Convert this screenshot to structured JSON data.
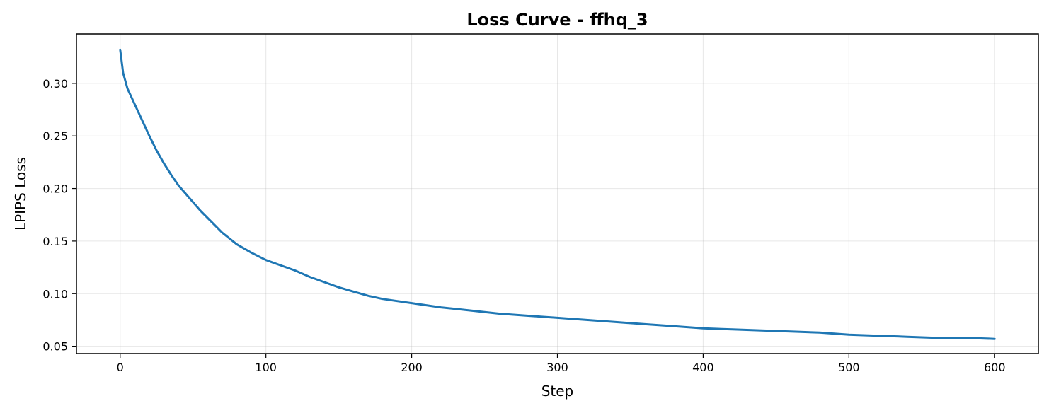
{
  "chart_data": {
    "type": "line",
    "title": "Loss Curve - ffhq_3",
    "xlabel": "Step",
    "ylabel": "LPIPS Loss",
    "xlim": [
      -30,
      630
    ],
    "ylim": [
      0.043,
      0.347
    ],
    "x_ticks": [
      0,
      100,
      200,
      300,
      400,
      500,
      600
    ],
    "y_ticks": [
      0.05,
      0.1,
      0.15,
      0.2,
      0.25,
      0.3
    ],
    "y_tick_labels": [
      "0.05",
      "0.10",
      "0.15",
      "0.20",
      "0.25",
      "0.30"
    ],
    "grid": true,
    "series": [
      {
        "color": "#1f77b4",
        "x": [
          0,
          2,
          5,
          10,
          15,
          20,
          25,
          30,
          35,
          40,
          45,
          50,
          55,
          60,
          65,
          70,
          80,
          90,
          100,
          110,
          120,
          130,
          140,
          150,
          160,
          170,
          180,
          190,
          200,
          220,
          240,
          260,
          280,
          300,
          320,
          340,
          360,
          380,
          400,
          420,
          440,
          460,
          480,
          500,
          520,
          540,
          560,
          580,
          600
        ],
        "y": [
          0.332,
          0.31,
          0.295,
          0.28,
          0.265,
          0.25,
          0.236,
          0.224,
          0.213,
          0.203,
          0.195,
          0.187,
          0.179,
          0.172,
          0.165,
          0.158,
          0.147,
          0.139,
          0.132,
          0.127,
          0.122,
          0.116,
          0.111,
          0.106,
          0.102,
          0.098,
          0.095,
          0.093,
          0.091,
          0.087,
          0.084,
          0.081,
          0.079,
          0.077,
          0.075,
          0.073,
          0.071,
          0.069,
          0.067,
          0.066,
          0.065,
          0.064,
          0.063,
          0.061,
          0.06,
          0.059,
          0.058,
          0.058,
          0.057
        ]
      }
    ]
  }
}
